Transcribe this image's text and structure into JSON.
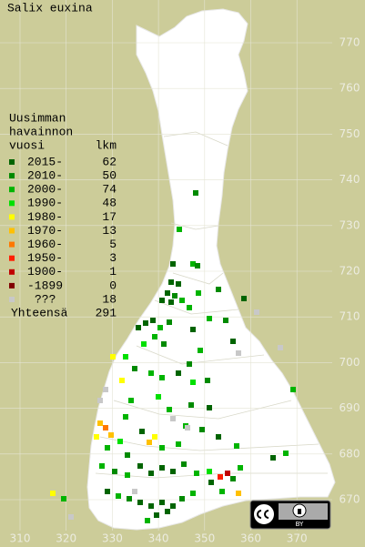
{
  "title": "Salix euxina",
  "legend": {
    "header": [
      "Uusimman",
      "havainnon"
    ],
    "year_header": "vuosi",
    "count_header": "lkm",
    "items": [
      {
        "label": "2015-",
        "count": 62,
        "color": "#006400"
      },
      {
        "label": "2010-",
        "count": 50,
        "color": "#008a00"
      },
      {
        "label": "2000-",
        "count": 74,
        "color": "#00b400"
      },
      {
        "label": "1990-",
        "count": 48,
        "color": "#00e000"
      },
      {
        "label": "1980-",
        "count": 17,
        "color": "#ffff00"
      },
      {
        "label": "1970-",
        "count": 13,
        "color": "#ffc000"
      },
      {
        "label": "1960-",
        "count": 5,
        "color": "#ff7800"
      },
      {
        "label": "1950-",
        "count": 3,
        "color": "#ff1e00"
      },
      {
        "label": "1900-",
        "count": 1,
        "color": "#c00000"
      },
      {
        "label": "-1899",
        "count": 0,
        "color": "#800000"
      },
      {
        "label": "???",
        "count": 18,
        "color": "#c8c8c8"
      }
    ],
    "total_label": "Yhteensä",
    "total": 291
  },
  "grid": {
    "northing": [
      770,
      760,
      750,
      740,
      730,
      720,
      710,
      700,
      690,
      680,
      670
    ],
    "easting": [
      310,
      320,
      330,
      340,
      350,
      360,
      370
    ]
  },
  "license_badge": "BY"
}
